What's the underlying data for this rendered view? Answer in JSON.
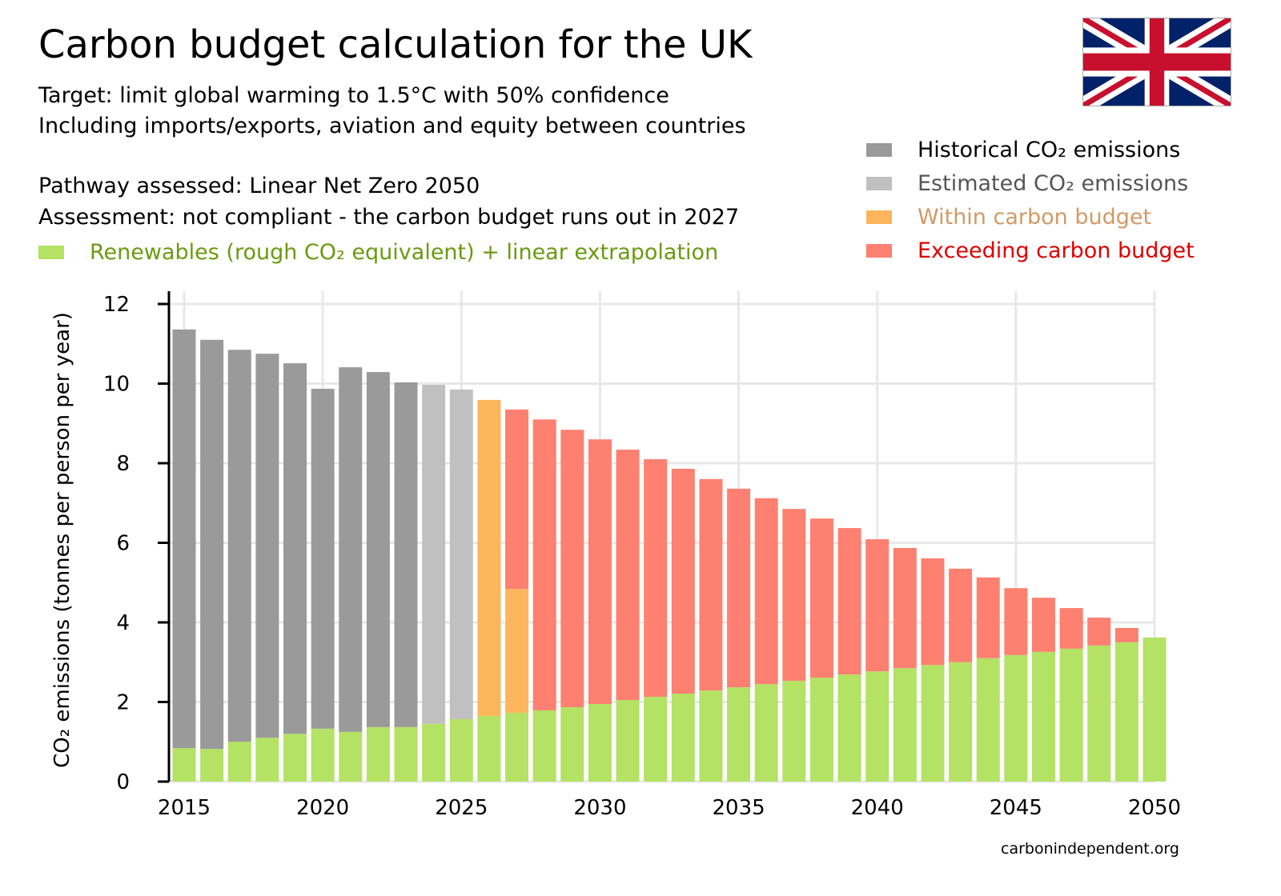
{
  "header": {
    "title": "Carbon budget calculation for the UK",
    "line1": "Target: limit global warming to 1.5°C with 50% confidence",
    "line2": "Including imports/exports, aviation and equity between countries",
    "pathway": "Pathway assessed: Linear Net Zero 2050",
    "assessment": "Assessment: not compliant - the carbon budget runs out in 2027"
  },
  "flag": "united-kingdom-flag",
  "credit": "carbonindependent.org",
  "legend": [
    {
      "label": "Historical CO₂ emissions",
      "color": "#9a9a9a",
      "text_color": "#000000"
    },
    {
      "label": "Estimated CO₂ emissions",
      "color": "#c0c0c0",
      "text_color": "#555555"
    },
    {
      "label": "Within carbon budget",
      "color": "#fdb55b",
      "text_color": "#d19a66"
    },
    {
      "label": "Exceeding carbon budget",
      "color": "#fe8070",
      "text_color": "#dd0000"
    },
    {
      "label": "Renewables (rough CO₂ equivalent) + linear extrapolation",
      "color": "#b3e264",
      "text_color": "#6a9a10"
    }
  ],
  "chart_data": {
    "type": "bar",
    "stacked": true,
    "ylabel": "CO₂ emissions (tonnes per person per year)",
    "xlabel": "",
    "ylim": [
      0,
      12
    ],
    "xlim": [
      2015,
      2050
    ],
    "yticks": [
      "0",
      "2",
      "4",
      "6",
      "8",
      "10",
      "12"
    ],
    "xticks": [
      "2015",
      "2020",
      "2025",
      "2030",
      "2035",
      "2040",
      "2045",
      "2050"
    ],
    "grid": true,
    "legend_position": "top-right",
    "x": [
      2015,
      2016,
      2017,
      2018,
      2019,
      2020,
      2021,
      2022,
      2023,
      2024,
      2025,
      2026,
      2027,
      2028,
      2029,
      2030,
      2031,
      2032,
      2033,
      2034,
      2035,
      2036,
      2037,
      2038,
      2039,
      2040,
      2041,
      2042,
      2043,
      2044,
      2045,
      2046,
      2047,
      2048,
      2049,
      2050
    ],
    "series": [
      {
        "name": "Renewables (rough CO₂ equivalent) + linear extrapolation",
        "color": "#b3e264",
        "values": [
          0.84,
          0.82,
          1.0,
          1.1,
          1.2,
          1.33,
          1.25,
          1.37,
          1.37,
          1.45,
          1.57,
          1.65,
          1.73,
          1.79,
          1.87,
          1.95,
          2.05,
          2.13,
          2.21,
          2.29,
          2.37,
          2.45,
          2.53,
          2.61,
          2.69,
          2.77,
          2.85,
          2.93,
          3.0,
          3.1,
          3.18,
          3.26,
          3.34,
          3.42,
          3.5,
          3.62
        ]
      },
      {
        "name": "Historical CO₂ emissions",
        "color": "#9a9a9a",
        "values": [
          10.52,
          10.28,
          9.85,
          9.65,
          9.31,
          8.54,
          9.16,
          8.92,
          8.66,
          0,
          0,
          0,
          0,
          0,
          0,
          0,
          0,
          0,
          0,
          0,
          0,
          0,
          0,
          0,
          0,
          0,
          0,
          0,
          0,
          0,
          0,
          0,
          0,
          0,
          0,
          0
        ]
      },
      {
        "name": "Estimated CO₂ emissions",
        "color": "#c0c0c0",
        "values": [
          0,
          0,
          0,
          0,
          0,
          0,
          0,
          0,
          0,
          8.52,
          8.28,
          0,
          0,
          0,
          0,
          0,
          0,
          0,
          0,
          0,
          0,
          0,
          0,
          0,
          0,
          0,
          0,
          0,
          0,
          0,
          0,
          0,
          0,
          0,
          0,
          0
        ]
      },
      {
        "name": "Within carbon budget",
        "color": "#fdb55b",
        "values": [
          0,
          0,
          0,
          0,
          0,
          0,
          0,
          0,
          0,
          0,
          0,
          7.94,
          3.11,
          0,
          0,
          0,
          0,
          0,
          0,
          0,
          0,
          0,
          0,
          0,
          0,
          0,
          0,
          0,
          0,
          0,
          0,
          0,
          0,
          0,
          0,
          0
        ]
      },
      {
        "name": "Exceeding carbon budget",
        "color": "#fe8070",
        "values": [
          0,
          0,
          0,
          0,
          0,
          0,
          0,
          0,
          0,
          0,
          0,
          0,
          4.51,
          7.31,
          6.97,
          6.65,
          6.29,
          5.97,
          5.65,
          5.31,
          4.99,
          4.67,
          4.32,
          4.0,
          3.68,
          3.32,
          3.02,
          2.68,
          2.35,
          2.03,
          1.68,
          1.36,
          1.02,
          0.7,
          0.36,
          0
        ]
      }
    ]
  }
}
